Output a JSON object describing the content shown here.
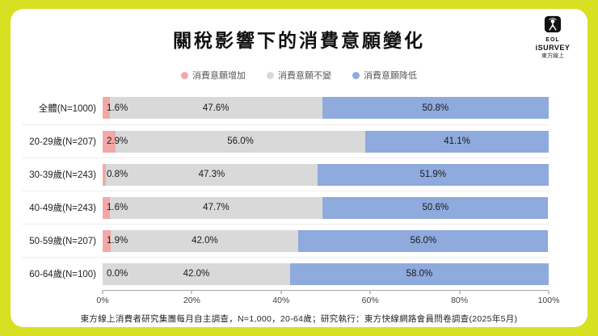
{
  "title": "關稅影響下的消費意願變化",
  "logo": {
    "brand": "EOL",
    "product": "iSURVEY",
    "company": "東方線上"
  },
  "legend": [
    {
      "label": "消費意願增加",
      "color": "#f3a8a8"
    },
    {
      "label": "消費意願不變",
      "color": "#d9d9d9"
    },
    {
      "label": "消費意願降低",
      "color": "#8faadc"
    }
  ],
  "chart_data": {
    "type": "bar",
    "orientation": "horizontal",
    "stacked": true,
    "title": "關稅影響下的消費意願變化",
    "categories": [
      "全體(N=1000)",
      "20-29歲(N=207)",
      "30-39歲(N=243)",
      "40-49歲(N=243)",
      "50-59歲(N=207)",
      "60-64歲(N=100)"
    ],
    "series": [
      {
        "name": "消費意願增加",
        "color": "#f3a8a8",
        "values": [
          1.6,
          2.9,
          0.8,
          1.6,
          1.9,
          0.0
        ]
      },
      {
        "name": "消費意願不變",
        "color": "#d9d9d9",
        "values": [
          47.6,
          56.0,
          47.3,
          47.7,
          42.0,
          42.0
        ]
      },
      {
        "name": "消費意願降低",
        "color": "#8faadc",
        "values": [
          50.8,
          41.1,
          51.9,
          50.6,
          56.0,
          58.0
        ]
      }
    ],
    "x_ticks": [
      "0%",
      "20%",
      "40%",
      "60%",
      "80%",
      "100%"
    ],
    "xlim": [
      0,
      100
    ],
    "value_suffix": "%",
    "legend_position": "top",
    "grid": false
  },
  "footer": "東方線上消費者研究集團每月自主調查，N=1,000，20-64歲；研究執行：東方快線網路會員問卷調查(2025年5月)",
  "colors": {
    "page_background": "#d8e022",
    "card_background": "#ffffff",
    "increase": "#f3a8a8",
    "unchanged": "#d9d9d9",
    "decrease": "#8faadc"
  }
}
